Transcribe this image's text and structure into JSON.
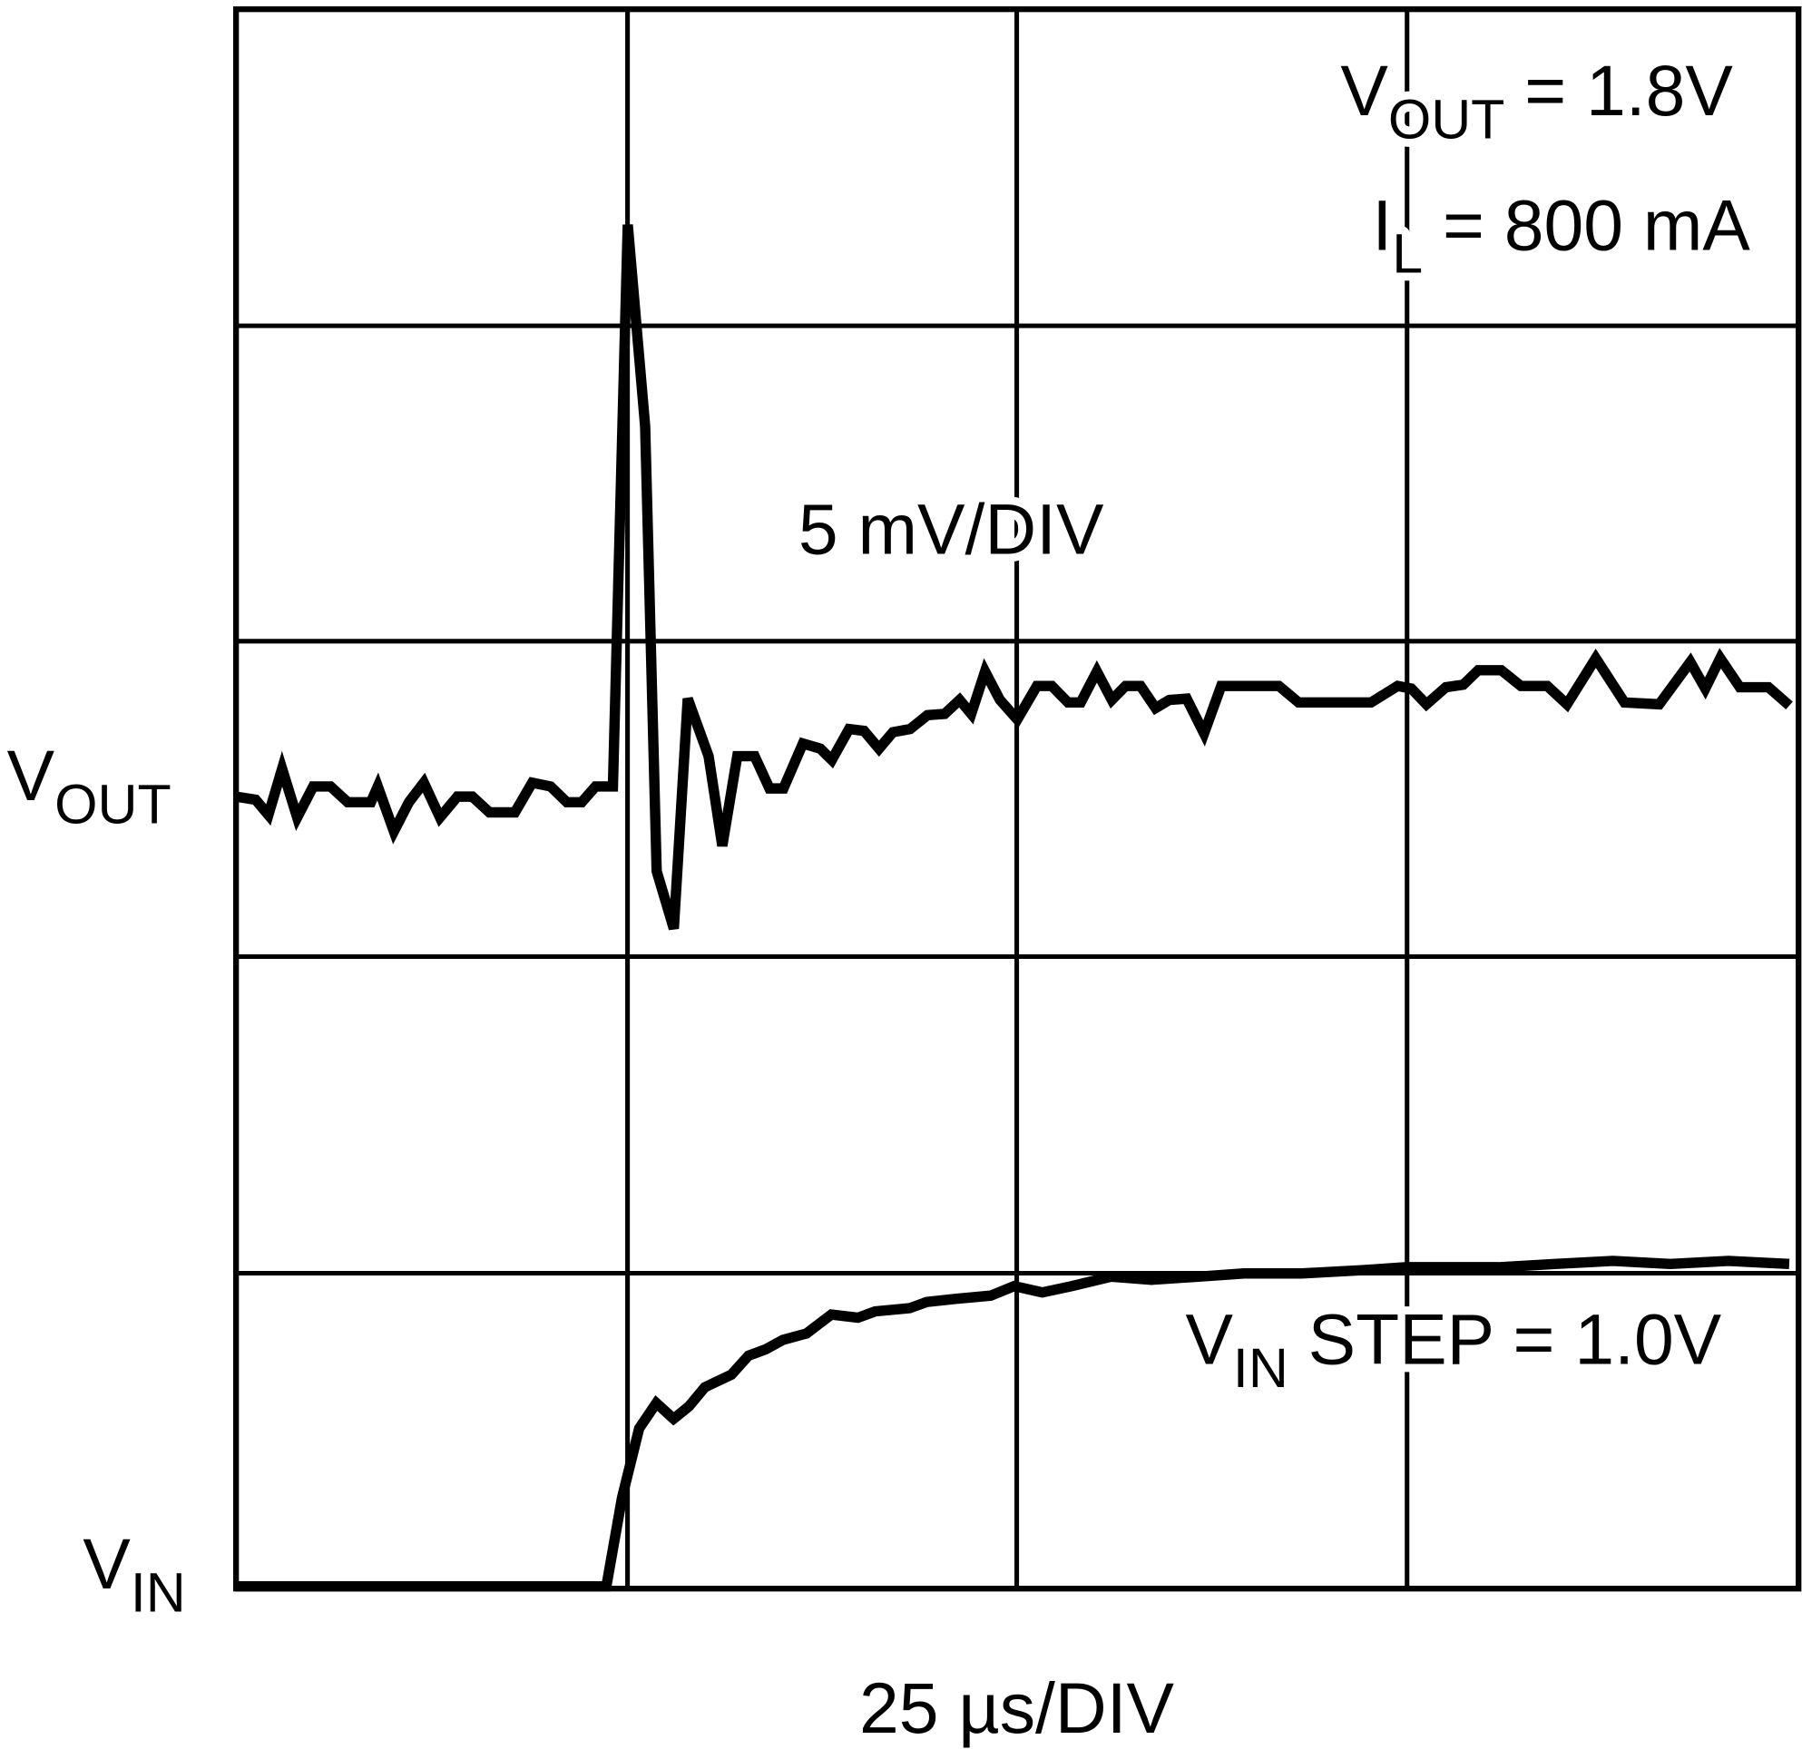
{
  "chart_data": {
    "type": "line",
    "grid": true,
    "x_divisions": 4,
    "y_divisions": 5,
    "xlim": [
      0,
      100
    ],
    "x_unit": "µs",
    "annotations": {
      "vout_setting": {
        "main": "V",
        "sub": "OUT",
        "rest": " = 1.8V"
      },
      "load_current": {
        "main": "I",
        "sub": "L",
        "rest": " = 800 mA"
      },
      "vout_scale": "5 mV/DIV",
      "vin_step": {
        "main": "V",
        "sub": "IN",
        "rest": " STEP = 1.0V"
      },
      "time_scale": "25 µs/DIV"
    },
    "trace_labels": {
      "vout": {
        "main": "V",
        "sub": "OUT"
      },
      "vin": {
        "main": "V",
        "sub": "IN"
      }
    },
    "series": [
      {
        "name": "VOUT",
        "unit": "mV (relative)",
        "color": "#000000",
        "x": [
          0,
          1.25,
          2.07,
          2.95,
          3.91,
          4.94,
          6.05,
          7.15,
          8.63,
          9.07,
          10.1,
          11.06,
          12.02,
          13.05,
          14.16,
          15.12,
          16.22,
          17.85,
          18.95,
          20.13,
          21.17,
          22.12,
          23.01,
          24.12,
          25.07,
          26.18,
          26.92,
          28.02,
          28.91,
          30.24,
          31.12,
          32.08,
          33.19,
          34.14,
          35.03,
          36.28,
          37.39,
          38.13,
          39.23,
          40.19,
          41.15,
          42.04,
          43.14,
          44.25,
          45.35,
          46.31,
          47.05,
          47.94,
          48.89,
          50.0,
          51.25,
          52.21,
          53.24,
          54.06,
          55.09,
          56.05,
          56.93,
          57.89,
          58.85,
          59.73,
          60.84,
          61.95,
          63.05,
          66.74,
          68.0,
          72.64,
          74.34,
          75.22,
          76.18,
          77.43,
          78.54,
          79.5,
          80.97,
          82.23,
          83.92,
          85.18,
          87.02,
          88.86,
          91.08,
          93.07,
          94.03,
          94.99,
          96.24,
          98.08,
          99.41
        ],
        "y": [
          0,
          -0.05,
          -0.29,
          0.44,
          -0.33,
          0.16,
          0.16,
          -0.09,
          -0.09,
          0.16,
          -0.55,
          -0.09,
          0.22,
          -0.33,
          0,
          0,
          -0.25,
          -0.25,
          0.22,
          0.16,
          -0.09,
          -0.09,
          0.16,
          0.16,
          9.05,
          5.86,
          -1.18,
          -2.09,
          1.55,
          0.64,
          -0.78,
          0.64,
          0.64,
          0.13,
          0.13,
          0.84,
          0.76,
          0.58,
          1.07,
          1.04,
          0.76,
          1.02,
          1.07,
          1.29,
          1.31,
          1.53,
          1.31,
          1.98,
          1.53,
          1.22,
          1.75,
          1.75,
          1.49,
          1.49,
          1.98,
          1.53,
          1.75,
          1.75,
          1.4,
          1.53,
          1.55,
          1.0,
          1.75,
          1.75,
          1.49,
          1.49,
          1.75,
          1.71,
          1.46,
          1.73,
          1.77,
          2.0,
          2.0,
          1.75,
          1.75,
          1.46,
          2.19,
          1.49,
          1.46,
          2.13,
          1.71,
          2.19,
          1.73,
          1.73,
          1.44
        ]
      },
      {
        "name": "VIN",
        "unit": "V (relative)",
        "color": "#000000",
        "x": [
          0,
          23.7,
          24.7,
          25.8,
          26.9,
          28.0,
          29.0,
          30.0,
          31.7,
          32.8,
          33.9,
          35.0,
          36.5,
          38.1,
          39.8,
          40.9,
          43.1,
          44.2,
          46.1,
          48.3,
          49.8,
          51.6,
          53.5,
          56.0,
          58.6,
          61.6,
          64.5,
          68.2,
          71.9,
          74.9,
          77.8,
          80.8,
          84.4,
          88.1,
          91.8,
          95.5,
          99.4
        ],
        "y": [
          0,
          0,
          0.28,
          0.5,
          0.58,
          0.53,
          0.57,
          0.63,
          0.67,
          0.73,
          0.75,
          0.78,
          0.8,
          0.86,
          0.85,
          0.87,
          0.88,
          0.9,
          0.91,
          0.92,
          0.95,
          0.93,
          0.95,
          0.98,
          0.97,
          0.98,
          0.99,
          0.99,
          1.0,
          1.01,
          1.01,
          1.01,
          1.02,
          1.03,
          1.02,
          1.03,
          1.02
        ]
      }
    ]
  }
}
